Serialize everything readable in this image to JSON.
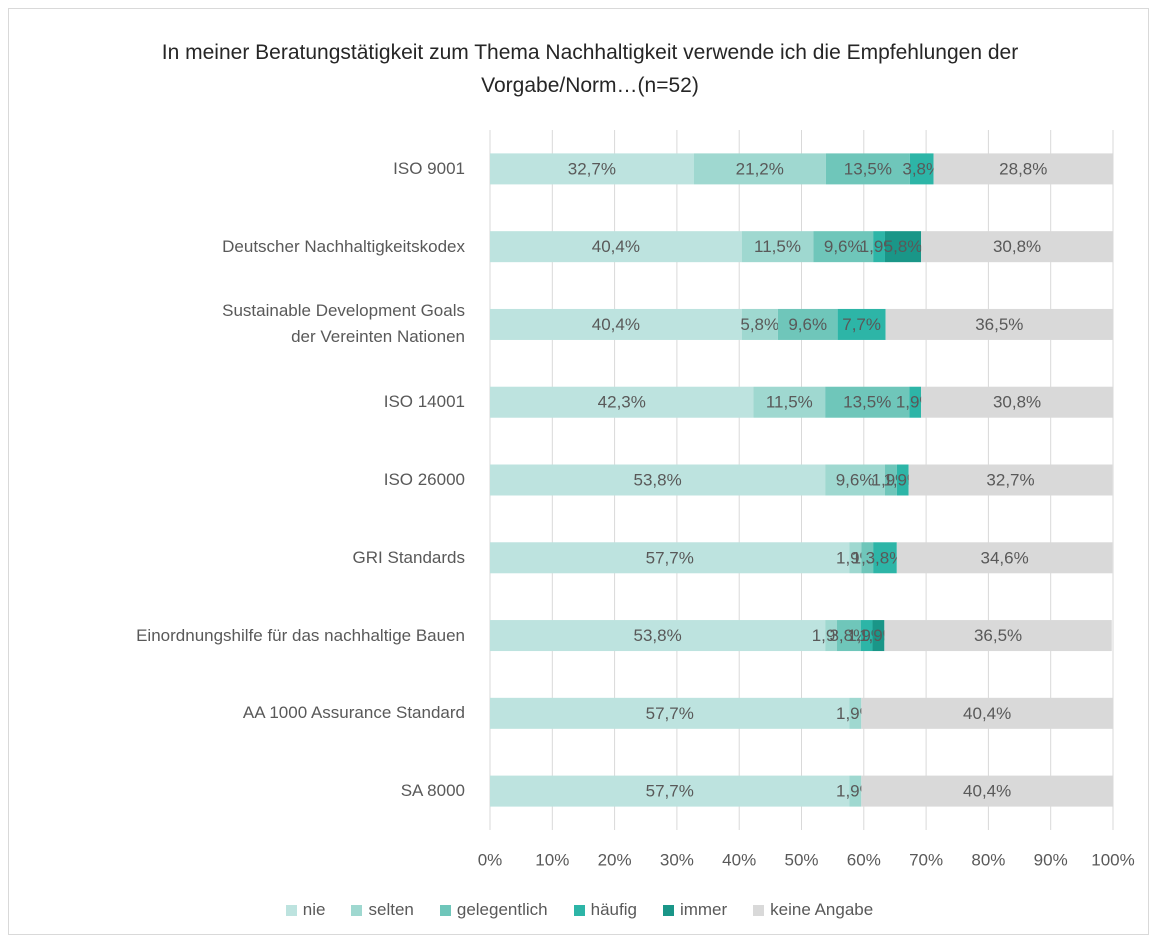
{
  "chart_data": {
    "type": "stacked_bar_horizontal",
    "title": "In meiner Beratungstätigkeit zum Thema Nachhaltigkeit verwende ich die Empfehlungen der Vorgabe/Norm…(n=52)",
    "categories": [
      "ISO 9001",
      "Deutscher Nachhaltigkeitskodex",
      "Sustainable Development Goals\nder Vereinten Nationen",
      "ISO 14001",
      "ISO 26000",
      "GRI Standards",
      "Einordnungshilfe für das nachhaltige Bauen",
      "AA 1000 Assurance Standard",
      "SA 8000"
    ],
    "series": [
      {
        "name": "nie",
        "color": "#bde3df",
        "values": [
          32.7,
          40.4,
          40.4,
          42.3,
          53.8,
          57.7,
          53.8,
          57.7,
          57.7
        ],
        "value_labels": [
          "32,7%",
          "40,4%",
          "40,4%",
          "42,3%",
          "53,8%",
          "57,7%",
          "53,8%",
          "57,7%",
          "57,7%"
        ]
      },
      {
        "name": "selten",
        "color": "#9fd8d0",
        "values": [
          21.2,
          11.5,
          5.8,
          11.5,
          9.6,
          1.9,
          1.9,
          1.9,
          1.9
        ],
        "value_labels": [
          "21,2%",
          "11,5%",
          "5,8%",
          "11,5%",
          "9,6%",
          "1,9%",
          "1,9%",
          "1,9%",
          "1,9%"
        ]
      },
      {
        "name": "gelegentlich",
        "color": "#6fc6ba",
        "values": [
          13.5,
          9.6,
          9.6,
          13.5,
          1.9,
          1.9,
          3.8,
          null,
          null
        ],
        "value_labels": [
          "13,5%",
          "9,6%",
          "9,6%",
          "13,5%",
          "1,9%",
          "1,…",
          "3,8%",
          null,
          null
        ]
      },
      {
        "name": "häufig",
        "color": "#2db5a7",
        "values": [
          3.8,
          1.9,
          7.7,
          1.9,
          1.9,
          3.8,
          1.9,
          null,
          null
        ],
        "value_labels": [
          "3,8%",
          "1,9%",
          "7,7%",
          "1,9%",
          "1,9%",
          "3,8%",
          "1,9%",
          null,
          null
        ]
      },
      {
        "name": "immer",
        "color": "#1a9688",
        "values": [
          null,
          5.8,
          null,
          null,
          null,
          null,
          1.9,
          null,
          null
        ],
        "value_labels": [
          null,
          "5,8%",
          null,
          null,
          null,
          null,
          "1,9%",
          null,
          null
        ]
      },
      {
        "name": "keine Angabe",
        "color": "#d9d9d9",
        "values": [
          28.8,
          30.8,
          36.5,
          30.8,
          32.7,
          34.6,
          36.5,
          40.4,
          40.4
        ],
        "value_labels": [
          "28,8%",
          "30,8%",
          "36,5%",
          "30,8%",
          "32,7%",
          "34,6%",
          "36,5%",
          "40,4%",
          "40,4%"
        ]
      }
    ],
    "xlim": [
      0,
      100
    ],
    "xticks": [
      {
        "value": 0,
        "label": "0%"
      },
      {
        "value": 10,
        "label": "10%"
      },
      {
        "value": 20,
        "label": "20%"
      },
      {
        "value": 30,
        "label": "30%"
      },
      {
        "value": 40,
        "label": "40%"
      },
      {
        "value": 50,
        "label": "50%"
      },
      {
        "value": 60,
        "label": "60%"
      },
      {
        "value": 70,
        "label": "70%"
      },
      {
        "value": 80,
        "label": "80%"
      },
      {
        "value": 90,
        "label": "90%"
      },
      {
        "value": 100,
        "label": "100%"
      }
    ],
    "grid": true,
    "legend": "bottom"
  }
}
